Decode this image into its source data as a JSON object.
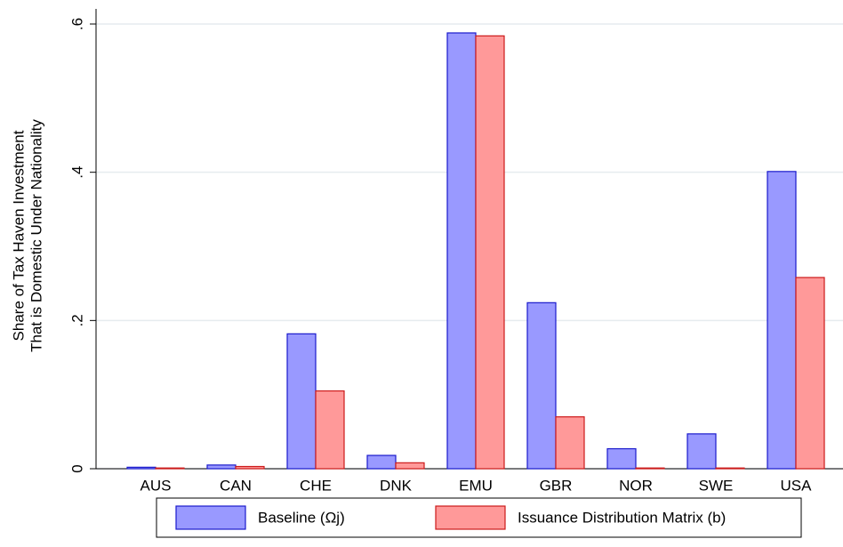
{
  "chart_data": {
    "type": "bar",
    "y_label": [
      "Share of Tax Haven Investment",
      "That is Domestic Under Nationality"
    ],
    "categories": [
      "AUS",
      "CAN",
      "CHE",
      "DNK",
      "EMU",
      "GBR",
      "NOR",
      "SWE",
      "USA"
    ],
    "series": [
      {
        "name": "Baseline (Ωj)",
        "color": "#9999ff",
        "edgecolor": "#1a1acc",
        "values": [
          0.002,
          0.005,
          0.182,
          0.018,
          0.588,
          0.224,
          0.027,
          0.047,
          0.401
        ]
      },
      {
        "name": "Issuance Distribution Matrix (b)",
        "color": "#ff9999",
        "edgecolor": "#cc1a1a",
        "values": [
          0.001,
          0.003,
          0.105,
          0.008,
          0.584,
          0.07,
          0.001,
          0.001,
          0.258
        ]
      }
    ],
    "ylim": [
      0,
      0.6
    ],
    "yticks": [
      0,
      {
        "value": 0.2,
        "label": ".2"
      },
      {
        "value": 0.4,
        "label": ".4"
      },
      {
        "value": 0.6,
        "label": ".6"
      }
    ],
    "grid": true,
    "legend": "bottom"
  }
}
